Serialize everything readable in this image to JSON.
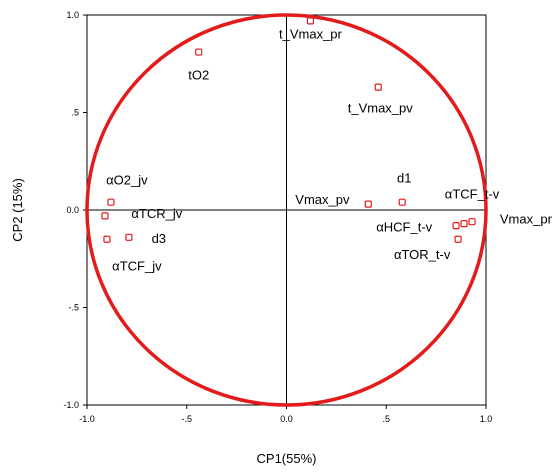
{
  "chart_data": {
    "type": "scatter",
    "title": "",
    "xlabel": "CP1(55%)",
    "ylabel": "CP2 (15%)",
    "xlim": [
      -1.0,
      1.0
    ],
    "ylim": [
      -1.0,
      1.0
    ],
    "x_ticks": [
      {
        "value": -1.0,
        "label": "-1.0"
      },
      {
        "value": -0.5,
        "label": "-.5"
      },
      {
        "value": 0.0,
        "label": "0.0"
      },
      {
        "value": 0.5,
        "label": ".5"
      },
      {
        "value": 1.0,
        "label": "1.0"
      }
    ],
    "y_ticks": [
      {
        "value": 1.0,
        "label": "1.0"
      },
      {
        "value": 0.5,
        "label": ".5"
      },
      {
        "value": 0.0,
        "label": "0.0"
      },
      {
        "value": -0.5,
        "label": "-.5"
      },
      {
        "value": -1.0,
        "label": "-1.0"
      }
    ],
    "grid": false,
    "unit_circle": {
      "radius": 1.0,
      "color": "#e31b1b"
    },
    "marker_color": "#e31b1b",
    "points": [
      {
        "x": 0.12,
        "y": 0.97
      },
      {
        "x": -0.44,
        "y": 0.81
      },
      {
        "x": 0.46,
        "y": 0.63
      },
      {
        "x": -0.88,
        "y": 0.04
      },
      {
        "x": -0.91,
        "y": -0.03
      },
      {
        "x": -0.9,
        "y": -0.15
      },
      {
        "x": -0.79,
        "y": -0.14
      },
      {
        "x": 0.41,
        "y": 0.03
      },
      {
        "x": 0.58,
        "y": 0.04
      },
      {
        "x": 0.85,
        "y": -0.08
      },
      {
        "x": 0.89,
        "y": -0.07
      },
      {
        "x": 0.93,
        "y": -0.06
      },
      {
        "x": 0.86,
        "y": -0.15
      }
    ],
    "labels": [
      {
        "text": "t_Vmax_pr",
        "x": 0.12,
        "y": 0.88
      },
      {
        "text": "tO2",
        "x": -0.44,
        "y": 0.67
      },
      {
        "text": "t_Vmax_pv",
        "x": 0.47,
        "y": 0.5
      },
      {
        "text": "αO2_jv",
        "x": -0.8,
        "y": 0.13
      },
      {
        "text": "αTCR_jv",
        "x": -0.65,
        "y": -0.04
      },
      {
        "text": "d3",
        "x": -0.64,
        "y": -0.17
      },
      {
        "text": "αTCF_jv",
        "x": -0.75,
        "y": -0.31
      },
      {
        "text": "Vmax_pv",
        "x": 0.18,
        "y": 0.03
      },
      {
        "text": "d1",
        "x": 0.59,
        "y": 0.14
      },
      {
        "text": "αTCF_t-v",
        "x": 0.93,
        "y": 0.06
      },
      {
        "text": "Vmax_pr",
        "x": 1.2,
        "y": -0.07
      },
      {
        "text": "αHCF_t-v",
        "x": 0.59,
        "y": -0.11
      },
      {
        "text": "αTOR_t-v",
        "x": 0.68,
        "y": -0.25
      }
    ]
  }
}
